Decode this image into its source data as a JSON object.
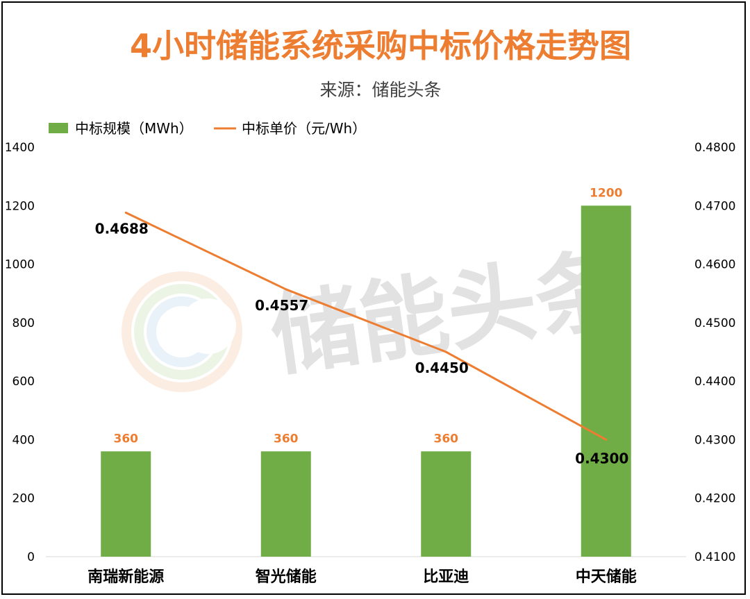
{
  "watermark": {
    "text": "储能头条"
  },
  "chart_data": {
    "type": "bar",
    "title": "4小时储能系统采购中标价格走势图",
    "subtitle": "来源：储能头条",
    "categories": [
      "南瑞新能源",
      "智光储能",
      "比亚迪",
      "中天储能"
    ],
    "series": [
      {
        "name": "中标规模（MWh）",
        "type": "bar",
        "axis": "left",
        "values": [
          360,
          360,
          360,
          1200
        ],
        "labels": [
          "360",
          "360",
          "360",
          "1200"
        ]
      },
      {
        "name": "中标单价（元/Wh）",
        "type": "line",
        "axis": "right",
        "values": [
          0.4688,
          0.4557,
          0.445,
          0.43
        ],
        "labels": [
          "0.4688",
          "0.4557",
          "0.4450",
          "0.4300"
        ]
      }
    ],
    "y_left": {
      "min": 0,
      "max": 1400,
      "ticks": [
        "0",
        "200",
        "400",
        "600",
        "800",
        "1000",
        "1200",
        "1400"
      ]
    },
    "y_right": {
      "min": 0.41,
      "max": 0.48,
      "ticks": [
        "0.4100",
        "0.4200",
        "0.4300",
        "0.4400",
        "0.4500",
        "0.4600",
        "0.4700",
        "0.4800"
      ]
    },
    "legend_position": "top-left",
    "grid": false,
    "colors": {
      "bar": "#70AD47",
      "line": "#ED7D31",
      "title": "#ED7D31",
      "bar_label": "#ED7D31",
      "line_label": "#000000"
    }
  }
}
